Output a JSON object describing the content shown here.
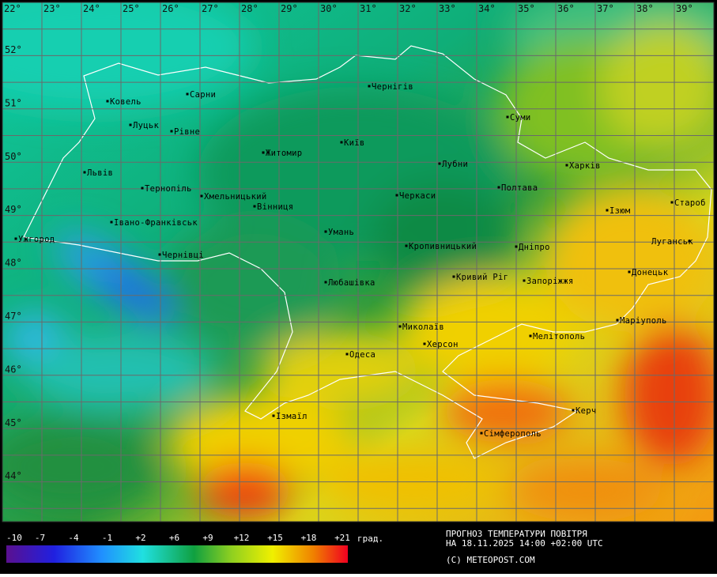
{
  "map": {
    "longitudes": [
      "22°",
      "23°",
      "24°",
      "25°",
      "26°",
      "27°",
      "28°",
      "29°",
      "30°",
      "31°",
      "32°",
      "33°",
      "34°",
      "35°",
      "36°",
      "37°",
      "38°",
      "39°"
    ],
    "latitudes": [
      "52°",
      "51°",
      "50°",
      "49°",
      "48°",
      "47°",
      "46°",
      "45°",
      "44°"
    ],
    "cities": [
      "Ковель",
      "Сарни",
      "Луцьк",
      "Рівне",
      "Чернігів",
      "Суми",
      "Житомир",
      "Київ",
      "Львів",
      "Лубни",
      "Харків",
      "Тернопіль",
      "Хмельницький",
      "Черкаси",
      "Полтава",
      "Вінниця",
      "Ізюм",
      "Староб",
      "Івано-Франківськ",
      "Ужгород",
      "Умань",
      "Луганськ",
      "Чернівці",
      "Кропивницький",
      "Дніпро",
      "Донецьк",
      "Кривий Ріг",
      "Запоріжжя",
      "Любашівка",
      "Маріуполь",
      "Миколаїв",
      "Мелітополь",
      "Херсон",
      "Одеса",
      "Керч",
      "Ізмаїл",
      "Сімферополь"
    ]
  },
  "legend": {
    "labels": [
      "-10",
      "-7",
      "-4",
      "-1",
      "+2",
      "+6",
      "+9",
      "+12",
      "+15",
      "+18",
      "+21"
    ],
    "unit": "град."
  },
  "footer": {
    "line1": "ПРОГНОЗ ТЕМПЕРАТУРИ ПОВІТРЯ",
    "line2": "НА 18.11.2025 14:00 +02:00 UTC",
    "credit": "(C) METEOPOST.COM"
  }
}
